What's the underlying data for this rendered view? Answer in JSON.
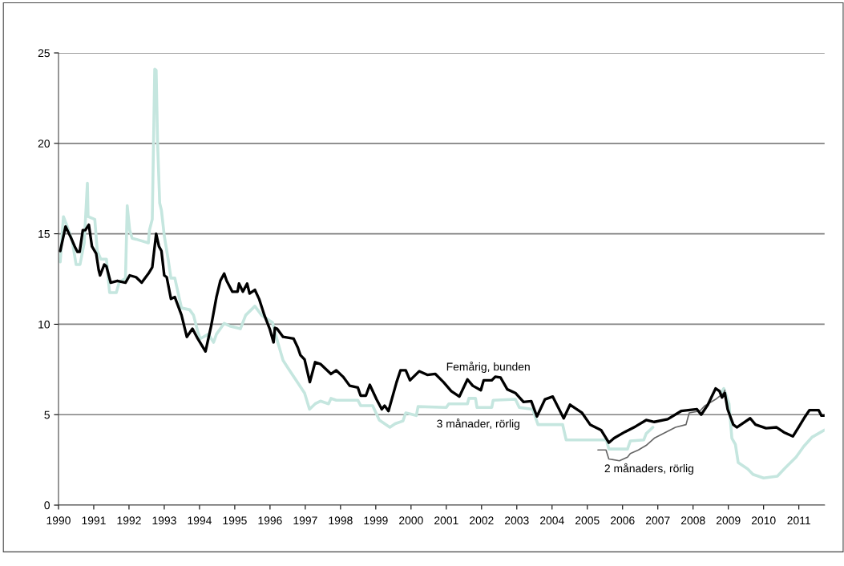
{
  "chart_data": {
    "type": "line",
    "xlim": [
      1990,
      2011.73
    ],
    "xticks": [
      1990,
      1991,
      1992,
      1993,
      1994,
      1995,
      1996,
      1997,
      1998,
      1999,
      2000,
      2001,
      2002,
      2003,
      2004,
      2005,
      2006,
      2007,
      2008,
      2009,
      2010,
      2011
    ],
    "ylim": [
      0,
      25
    ],
    "yticks": [
      0,
      5,
      10,
      15,
      20,
      25
    ],
    "grid": "y",
    "legend": false,
    "marker": "none",
    "line_style": "solid",
    "series": [
      {
        "name": "3 månader, rörlig",
        "color": "#c5e6df",
        "x": [
          1990.05,
          1990.14,
          1990.23,
          1990.39,
          1990.5,
          1990.61,
          1990.73,
          1990.82,
          1990.84,
          1991.03,
          1991.1,
          1991.2,
          1991.36,
          1991.45,
          1991.64,
          1991.72,
          1991.9,
          1991.95,
          1992.02,
          1992.09,
          1992.2,
          1992.55,
          1992.58,
          1992.66,
          1992.73,
          1992.77,
          1992.81,
          1992.87,
          1992.92,
          1993.0,
          1993.11,
          1993.19,
          1993.3,
          1993.42,
          1993.49,
          1993.72,
          1993.83,
          1993.95,
          1994.02,
          1994.25,
          1994.4,
          1994.48,
          1994.7,
          1994.86,
          1995.16,
          1995.31,
          1995.57,
          1995.76,
          1996.07,
          1996.22,
          1996.37,
          1996.52,
          1996.98,
          1997.12,
          1997.28,
          1997.43,
          1997.66,
          1997.73,
          1997.88,
          1998.49,
          1998.57,
          1998.91,
          1999.1,
          1999.4,
          1999.55,
          1999.77,
          1999.85,
          2000.15,
          2000.2,
          2001.0,
          2001.07,
          2001.6,
          2001.64,
          2001.83,
          2001.87,
          2002.29,
          2002.33,
          2002.96,
          2003.07,
          2003.45,
          2003.6,
          2004.3,
          2004.4,
          2005.54,
          2005.61,
          2006.14,
          2006.22,
          2006.6,
          2006.67,
          2006.86,
          2006.87,
          2008.8,
          2008.87,
          2009.02,
          2009.1,
          2009.2,
          2009.28,
          2009.55,
          2009.7,
          2010.0,
          2010.39,
          2010.61,
          2010.92,
          2011.14,
          2011.37,
          2011.73
        ],
        "values": [
          13.45,
          15.95,
          15.5,
          14.6,
          13.3,
          13.3,
          14.5,
          17.8,
          15.95,
          15.8,
          14.05,
          13.6,
          13.6,
          11.75,
          11.75,
          12.3,
          12.55,
          16.55,
          15.2,
          14.75,
          14.7,
          14.5,
          15.2,
          15.8,
          24.1,
          24.05,
          20.1,
          16.7,
          16.3,
          14.9,
          13.6,
          12.55,
          12.55,
          11.5,
          10.9,
          10.8,
          10.5,
          9.6,
          9.2,
          9.45,
          9.0,
          9.45,
          10.05,
          9.9,
          9.75,
          10.5,
          11.0,
          10.5,
          10.1,
          9.0,
          8.0,
          7.55,
          6.2,
          5.3,
          5.6,
          5.75,
          5.6,
          5.9,
          5.8,
          5.8,
          5.5,
          5.5,
          4.7,
          4.3,
          4.5,
          4.65,
          5.1,
          4.95,
          5.45,
          5.4,
          5.6,
          5.6,
          5.9,
          5.9,
          5.4,
          5.4,
          5.8,
          5.85,
          5.4,
          5.3,
          4.45,
          4.45,
          3.6,
          3.6,
          3.1,
          3.1,
          3.55,
          3.6,
          3.95,
          4.3,
          null,
          6.2,
          6.45,
          5.6,
          3.7,
          3.35,
          2.35,
          2.0,
          1.7,
          1.5,
          1.6,
          2.05,
          2.65,
          3.25,
          3.75,
          4.15
        ]
      },
      {
        "name": "2 månaders, rörlig",
        "color": "#666666",
        "x": [
          2005.3,
          2005.53,
          2005.61,
          2005.91,
          2006.14,
          2006.22,
          2006.45,
          2006.67,
          2006.9,
          2007.2,
          2007.5,
          2007.8,
          2007.89,
          2008.19,
          2008.34,
          2008.64,
          2008.87,
          2008.9
        ],
        "values": [
          3.05,
          3.05,
          2.55,
          2.45,
          2.65,
          2.85,
          3.05,
          3.3,
          3.7,
          4.0,
          4.3,
          4.45,
          5.1,
          5.2,
          5.5,
          5.85,
          6.2,
          6.35
        ]
      },
      {
        "name": "Femårig, bunden",
        "color": "#000000",
        "x": [
          1990.05,
          1990.2,
          1990.35,
          1990.46,
          1990.54,
          1990.6,
          1990.69,
          1990.76,
          1990.86,
          1990.95,
          1991.07,
          1991.14,
          1991.18,
          1991.3,
          1991.36,
          1991.48,
          1991.67,
          1991.9,
          1992.02,
          1992.2,
          1992.36,
          1992.55,
          1992.66,
          1992.77,
          1992.85,
          1992.92,
          1993.0,
          1993.07,
          1993.19,
          1993.3,
          1993.49,
          1993.64,
          1993.8,
          1993.95,
          1994.17,
          1994.33,
          1994.48,
          1994.59,
          1994.7,
          1994.77,
          1994.93,
          1995.08,
          1995.12,
          1995.23,
          1995.35,
          1995.42,
          1995.57,
          1995.69,
          1995.84,
          1995.99,
          1996.1,
          1996.14,
          1996.2,
          1996.37,
          1996.67,
          1996.79,
          1996.86,
          1996.98,
          1997.13,
          1997.28,
          1997.43,
          1997.73,
          1997.88,
          1998.07,
          1998.26,
          1998.49,
          1998.57,
          1998.72,
          1998.83,
          1999.02,
          1999.17,
          1999.25,
          1999.36,
          1999.59,
          1999.7,
          1999.85,
          1999.97,
          2000.23,
          2000.46,
          2000.69,
          2000.92,
          2001.14,
          2001.37,
          2001.6,
          2001.75,
          2001.98,
          2002.06,
          2002.29,
          2002.39,
          2002.54,
          2002.73,
          2002.96,
          2003.19,
          2003.41,
          2003.57,
          2003.8,
          2004.02,
          2004.33,
          2004.51,
          2004.85,
          2005.08,
          2005.39,
          2005.61,
          2005.76,
          2006.07,
          2006.37,
          2006.67,
          2006.9,
          2007.28,
          2007.66,
          2008.11,
          2008.23,
          2008.42,
          2008.64,
          2008.75,
          2008.82,
          2008.9,
          2008.98,
          2009.14,
          2009.24,
          2009.39,
          2009.62,
          2009.77,
          2010.07,
          2010.37,
          2010.6,
          2010.83,
          2010.99,
          2011.18,
          2011.3,
          2011.56,
          2011.64,
          2011.73
        ],
        "values": [
          14.05,
          15.4,
          14.8,
          14.3,
          14.0,
          14.0,
          15.2,
          15.2,
          15.5,
          14.3,
          13.9,
          13.0,
          12.7,
          13.3,
          13.2,
          12.3,
          12.4,
          12.3,
          12.7,
          12.6,
          12.3,
          12.8,
          13.15,
          15.0,
          14.3,
          14.05,
          12.7,
          12.6,
          11.4,
          11.5,
          10.5,
          9.3,
          9.75,
          9.2,
          8.5,
          9.9,
          11.5,
          12.4,
          12.8,
          12.4,
          11.8,
          11.8,
          12.25,
          11.8,
          12.25,
          11.7,
          11.9,
          11.4,
          10.5,
          9.75,
          9.0,
          9.8,
          9.75,
          9.3,
          9.2,
          8.7,
          8.3,
          8.05,
          6.8,
          7.9,
          7.8,
          7.25,
          7.45,
          7.1,
          6.6,
          6.5,
          6.05,
          6.05,
          6.65,
          5.85,
          5.3,
          5.5,
          5.2,
          6.8,
          7.45,
          7.45,
          6.9,
          7.4,
          7.2,
          7.25,
          6.8,
          6.3,
          6.0,
          6.95,
          6.6,
          6.35,
          6.9,
          6.9,
          7.1,
          7.05,
          6.4,
          6.2,
          5.7,
          5.75,
          4.9,
          5.85,
          6.0,
          4.8,
          5.55,
          5.1,
          4.45,
          4.15,
          3.45,
          3.7,
          4.05,
          4.35,
          4.7,
          4.6,
          4.75,
          5.2,
          5.3,
          5.0,
          5.55,
          6.45,
          6.3,
          5.95,
          6.2,
          5.3,
          4.45,
          4.3,
          4.5,
          4.8,
          4.45,
          4.25,
          4.3,
          4.0,
          3.8,
          4.3,
          4.9,
          5.25,
          5.25,
          4.95,
          4.95
        ]
      }
    ]
  }
}
